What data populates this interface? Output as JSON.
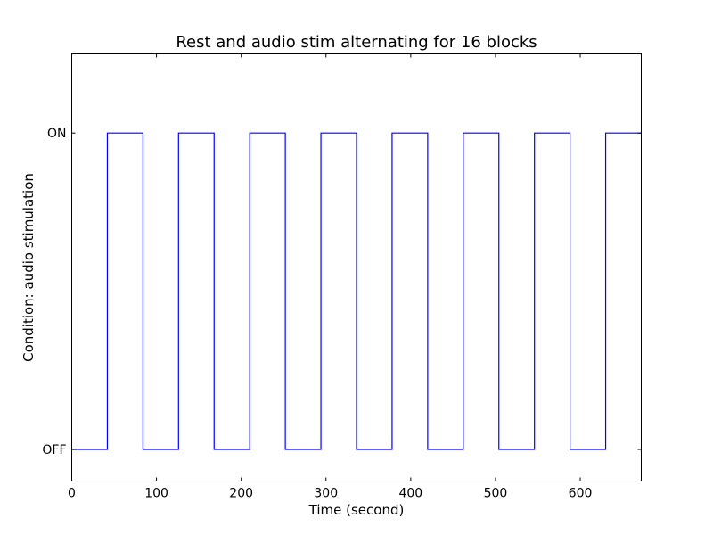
{
  "chart_data": {
    "type": "line",
    "title": "Rest and audio stim alternating for 16 blocks",
    "xlabel": "Time (second)",
    "ylabel": "Condition: audio stimulation",
    "xlim": [
      0,
      672
    ],
    "ylim": [
      -0.1,
      1.25
    ],
    "xticks": [
      0,
      100,
      200,
      300,
      400,
      500,
      600
    ],
    "yticks": [
      {
        "value": 0,
        "label": "OFF"
      },
      {
        "value": 1,
        "label": "ON"
      }
    ],
    "grid": false,
    "series": [
      {
        "color": "#0000ff",
        "step": "pre",
        "x": [
          0,
          42,
          84,
          126,
          168,
          210,
          252,
          294,
          336,
          378,
          420,
          462,
          504,
          546,
          588,
          630,
          672
        ],
        "y": [
          0,
          0,
          1,
          0,
          1,
          0,
          1,
          0,
          1,
          0,
          1,
          0,
          1,
          0,
          1,
          0,
          1
        ]
      }
    ]
  }
}
